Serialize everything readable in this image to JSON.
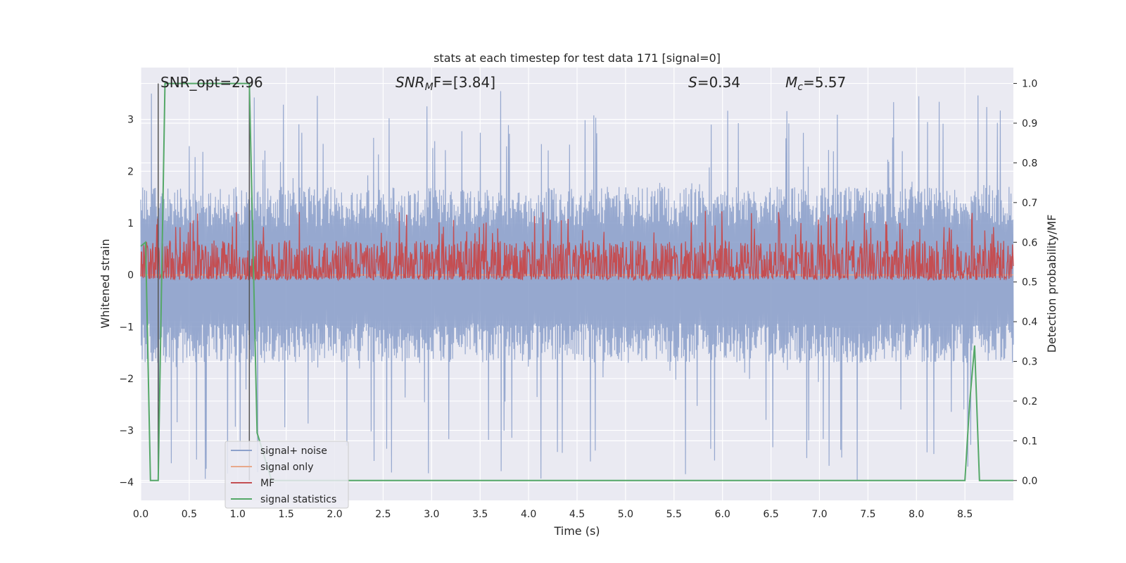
{
  "chart_data": {
    "type": "line",
    "title": "stats at each timestep for test data 171 [signal=0]",
    "xlabel": "Time (s)",
    "ylabel": "Whitened strain",
    "y2label": "Detection probability/MF",
    "xlim": [
      0,
      9.0
    ],
    "ylim": [
      -4.35,
      4.0
    ],
    "y2lim": [
      -0.05,
      1.04
    ],
    "xticks": [
      "0.0",
      "0.5",
      "1.0",
      "1.5",
      "2.0",
      "2.5",
      "3.0",
      "3.5",
      "4.0",
      "4.5",
      "5.0",
      "5.5",
      "6.0",
      "6.5",
      "7.0",
      "7.5",
      "8.0",
      "8.5"
    ],
    "yticks": [
      "−4",
      "−3",
      "−2",
      "−1",
      "0",
      "1",
      "2",
      "3"
    ],
    "y2ticks": [
      "0.0",
      "0.1",
      "0.2",
      "0.3",
      "0.4",
      "0.5",
      "0.6",
      "0.7",
      "0.8",
      "0.9",
      "1.0"
    ],
    "grid": true,
    "legend_position": "lower-left",
    "annotations": {
      "snr_opt": "SNR_opt=2.96",
      "snr_mf_sym": "SNR",
      "snr_mf_sub": "M",
      "snr_mf_rest": "F=[3.84]",
      "s_sym": "S",
      "s_rest": "=0.34",
      "mc_sym": "M",
      "mc_sub": "c",
      "mc_rest": "=5.57"
    },
    "series": [
      {
        "name": "signal+ noise",
        "color": "#8da1cb",
        "envelope": {
          "typical_min": -1.7,
          "typical_max": 1.7,
          "peak_min": -4.0,
          "peak_max": 3.6,
          "samples": 1800
        }
      },
      {
        "name": "signal only",
        "color": "#e8a98b",
        "constant": 0.0
      },
      {
        "name": "MF",
        "color": "#c44e52",
        "envelope": {
          "base": 0.3,
          "spread": 0.28,
          "peak_max": 1.0,
          "samples": 1800
        }
      },
      {
        "name": "signal statistics",
        "color": "#55a868",
        "x": [
          0.0,
          0.05,
          0.1,
          0.12,
          0.18,
          0.25,
          1.12,
          1.2,
          1.35,
          8.5,
          8.55,
          8.6,
          8.65,
          9.0
        ],
        "y": [
          0.59,
          0.6,
          0.0,
          0.0,
          0.0,
          1.0,
          1.0,
          0.12,
          0.0,
          0.0,
          0.2,
          0.34,
          0.0,
          0.0
        ]
      }
    ],
    "vertical_markers": [
      0.18,
      1.12
    ]
  }
}
